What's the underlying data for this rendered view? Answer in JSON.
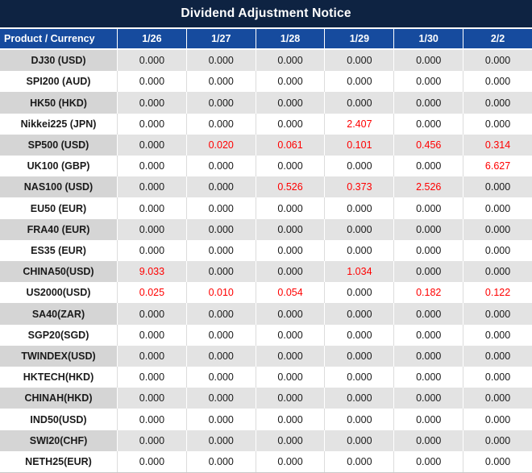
{
  "title": "Dividend Adjustment Notice",
  "table": {
    "header": {
      "product_col": "Product / Currency",
      "dates": [
        "1/26",
        "1/27",
        "1/28",
        "1/29",
        "1/30",
        "2/2"
      ]
    },
    "rows": [
      {
        "product": "DJ30 (USD)",
        "values": [
          "0.000",
          "0.000",
          "0.000",
          "0.000",
          "0.000",
          "0.000"
        ],
        "red": [
          false,
          false,
          false,
          false,
          false,
          false
        ]
      },
      {
        "product": "SPI200 (AUD)",
        "values": [
          "0.000",
          "0.000",
          "0.000",
          "0.000",
          "0.000",
          "0.000"
        ],
        "red": [
          false,
          false,
          false,
          false,
          false,
          false
        ]
      },
      {
        "product": "HK50 (HKD)",
        "values": [
          "0.000",
          "0.000",
          "0.000",
          "0.000",
          "0.000",
          "0.000"
        ],
        "red": [
          false,
          false,
          false,
          false,
          false,
          false
        ]
      },
      {
        "product": "Nikkei225 (JPN)",
        "values": [
          "0.000",
          "0.000",
          "0.000",
          "2.407",
          "0.000",
          "0.000"
        ],
        "red": [
          false,
          false,
          false,
          true,
          false,
          false
        ]
      },
      {
        "product": "SP500 (USD)",
        "values": [
          "0.000",
          "0.020",
          "0.061",
          "0.101",
          "0.456",
          "0.314"
        ],
        "red": [
          false,
          true,
          true,
          true,
          true,
          true
        ]
      },
      {
        "product": "UK100 (GBP)",
        "values": [
          "0.000",
          "0.000",
          "0.000",
          "0.000",
          "0.000",
          "6.627"
        ],
        "red": [
          false,
          false,
          false,
          false,
          false,
          true
        ]
      },
      {
        "product": "NAS100 (USD)",
        "values": [
          "0.000",
          "0.000",
          "0.526",
          "0.373",
          "2.526",
          "0.000"
        ],
        "red": [
          false,
          false,
          true,
          true,
          true,
          false
        ]
      },
      {
        "product": "EU50 (EUR)",
        "values": [
          "0.000",
          "0.000",
          "0.000",
          "0.000",
          "0.000",
          "0.000"
        ],
        "red": [
          false,
          false,
          false,
          false,
          false,
          false
        ]
      },
      {
        "product": "FRA40 (EUR)",
        "values": [
          "0.000",
          "0.000",
          "0.000",
          "0.000",
          "0.000",
          "0.000"
        ],
        "red": [
          false,
          false,
          false,
          false,
          false,
          false
        ]
      },
      {
        "product": "ES35 (EUR)",
        "values": [
          "0.000",
          "0.000",
          "0.000",
          "0.000",
          "0.000",
          "0.000"
        ],
        "red": [
          false,
          false,
          false,
          false,
          false,
          false
        ]
      },
      {
        "product": "CHINA50(USD)",
        "values": [
          "9.033",
          "0.000",
          "0.000",
          "1.034",
          "0.000",
          "0.000"
        ],
        "red": [
          true,
          false,
          false,
          true,
          false,
          false
        ]
      },
      {
        "product": "US2000(USD)",
        "values": [
          "0.025",
          "0.010",
          "0.054",
          "0.000",
          "0.182",
          "0.122"
        ],
        "red": [
          true,
          true,
          true,
          false,
          true,
          true
        ]
      },
      {
        "product": "SA40(ZAR)",
        "values": [
          "0.000",
          "0.000",
          "0.000",
          "0.000",
          "0.000",
          "0.000"
        ],
        "red": [
          false,
          false,
          false,
          false,
          false,
          false
        ]
      },
      {
        "product": "SGP20(SGD)",
        "values": [
          "0.000",
          "0.000",
          "0.000",
          "0.000",
          "0.000",
          "0.000"
        ],
        "red": [
          false,
          false,
          false,
          false,
          false,
          false
        ]
      },
      {
        "product": "TWINDEX(USD)",
        "values": [
          "0.000",
          "0.000",
          "0.000",
          "0.000",
          "0.000",
          "0.000"
        ],
        "red": [
          false,
          false,
          false,
          false,
          false,
          false
        ]
      },
      {
        "product": "HKTECH(HKD)",
        "values": [
          "0.000",
          "0.000",
          "0.000",
          "0.000",
          "0.000",
          "0.000"
        ],
        "red": [
          false,
          false,
          false,
          false,
          false,
          false
        ]
      },
      {
        "product": "CHINAH(HKD)",
        "values": [
          "0.000",
          "0.000",
          "0.000",
          "0.000",
          "0.000",
          "0.000"
        ],
        "red": [
          false,
          false,
          false,
          false,
          false,
          false
        ]
      },
      {
        "product": "IND50(USD)",
        "values": [
          "0.000",
          "0.000",
          "0.000",
          "0.000",
          "0.000",
          "0.000"
        ],
        "red": [
          false,
          false,
          false,
          false,
          false,
          false
        ]
      },
      {
        "product": "SWI20(CHF)",
        "values": [
          "0.000",
          "0.000",
          "0.000",
          "0.000",
          "0.000",
          "0.000"
        ],
        "red": [
          false,
          false,
          false,
          false,
          false,
          false
        ]
      },
      {
        "product": "NETH25(EUR)",
        "values": [
          "0.000",
          "0.000",
          "0.000",
          "0.000",
          "0.000",
          "0.000"
        ],
        "red": [
          false,
          false,
          false,
          false,
          false,
          false
        ]
      }
    ]
  },
  "colors": {
    "title_bg": "#0E2342",
    "header_bg": "#164B9E",
    "header_text": "#FFFFFF",
    "shade_label_bg": "#D5D5D5",
    "shade_cell_bg": "#E3E3E3",
    "row_bg": "#FFFFFF",
    "value_text": "#1A1A1A",
    "negative_value": "#FF0000"
  }
}
